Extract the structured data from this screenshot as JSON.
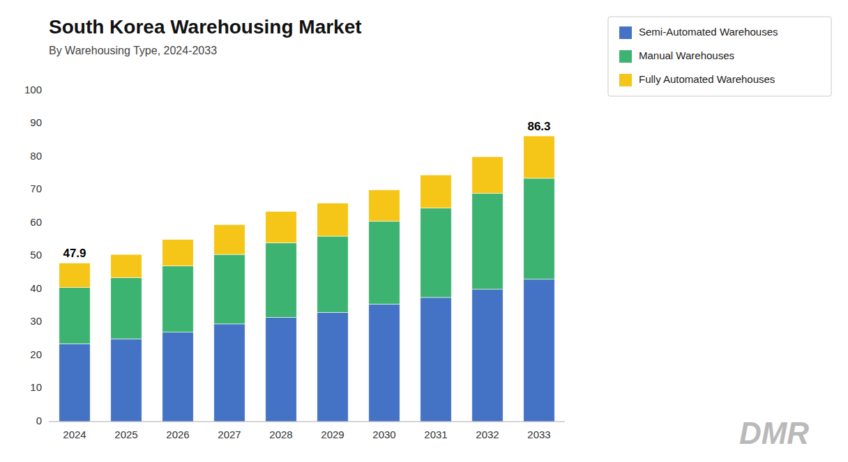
{
  "chart_data": {
    "type": "bar",
    "stacked": true,
    "title": "South Korea Warehousing Market",
    "subtitle": "By Warehousing Type, 2024-2033",
    "categories": [
      "2024",
      "2025",
      "2026",
      "2027",
      "2028",
      "2029",
      "2030",
      "2031",
      "2032",
      "2033"
    ],
    "series": [
      {
        "name": "Semi-Automated Warehouses",
        "color": "#4472C4",
        "values": [
          23.5,
          25.0,
          27.0,
          29.5,
          31.5,
          33.0,
          35.5,
          37.5,
          40.0,
          43.0
        ]
      },
      {
        "name": "Manual Warehouses",
        "color": "#3CB371",
        "values": [
          17.0,
          18.5,
          20.0,
          21.0,
          22.5,
          23.0,
          25.0,
          27.0,
          29.0,
          30.5
        ]
      },
      {
        "name": "Fully Automated Warehouses",
        "color": "#F5C518",
        "values": [
          7.4,
          7.0,
          8.0,
          9.0,
          9.5,
          10.0,
          9.5,
          10.0,
          11.0,
          12.8
        ]
      }
    ],
    "annotations": [
      {
        "text": "47.9",
        "value": 47.9,
        "category": "2024"
      },
      {
        "text": "86.3",
        "value": 86.3,
        "category": "2033"
      }
    ],
    "watermark": "DMR",
    "ylim": [
      0,
      100
    ],
    "yticks": [
      0,
      10,
      20,
      30,
      40,
      50,
      60,
      70,
      80,
      90,
      100
    ],
    "grid": false,
    "legend": "top-right"
  }
}
